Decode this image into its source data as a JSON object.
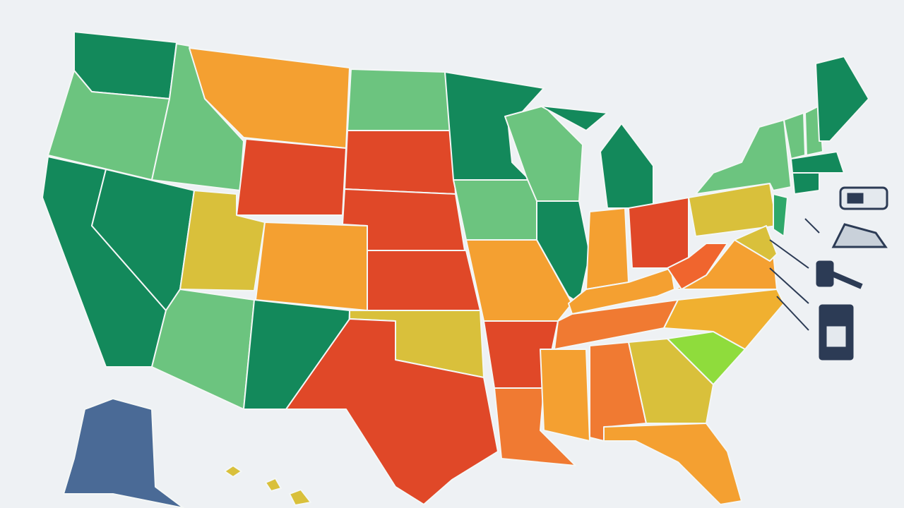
{
  "map": {
    "background": "#eef1f4",
    "border": "#f4f7f6",
    "regions": [
      {
        "color": "#13895b"
      },
      {
        "color": "#6cc47f"
      },
      {
        "color": "#6cc47f"
      },
      {
        "color": "#f4a031"
      },
      {
        "color": "#6cc47f"
      },
      {
        "color": "#e04828"
      },
      {
        "color": "#e04828"
      },
      {
        "color": "#e04828"
      },
      {
        "color": "#13895b"
      },
      {
        "color": "#13895b"
      },
      {
        "color": "#d9c03b"
      },
      {
        "color": "#f4a031"
      },
      {
        "color": "#e04828"
      },
      {
        "color": "#6cc47f"
      },
      {
        "color": "#13895b"
      },
      {
        "color": "#d9c03b"
      },
      {
        "color": "#e04828"
      },
      {
        "color": "#13895b"
      },
      {
        "color": "#6cc47f"
      },
      {
        "color": "#f4a031"
      },
      {
        "color": "#e04828"
      },
      {
        "color": "#f07a32"
      },
      {
        "color": "#6cc47f"
      },
      {
        "color": "#13895b"
      },
      {
        "color": "#13895b"
      },
      {
        "color": "#13895b"
      },
      {
        "color": "#f4a031"
      },
      {
        "color": "#e04828"
      },
      {
        "color": "#f4a031"
      },
      {
        "color": "#f07a32"
      },
      {
        "color": "#f4a031"
      },
      {
        "color": "#f07a32"
      },
      {
        "color": "#d9c03b"
      },
      {
        "color": "#f4a031"
      },
      {
        "color": "#8fdc3c"
      },
      {
        "color": "#f0b030"
      },
      {
        "color": "#f4a031"
      },
      {
        "color": "#f0652e"
      },
      {
        "color": "#d9c03b"
      },
      {
        "color": "#6cc47f"
      },
      {
        "color": "#2fa86a"
      },
      {
        "color": "#d9c03b"
      },
      {
        "color": "#6cc47f"
      },
      {
        "color": "#6cc47f"
      },
      {
        "color": "#13895b"
      },
      {
        "color": "#13895b"
      },
      {
        "color": "#13895b"
      },
      {
        "color": "#4a6a96"
      },
      {
        "color": "#d9c03b"
      },
      {
        "color": "#d9c03b"
      },
      {
        "color": "#d9c03b"
      }
    ]
  }
}
